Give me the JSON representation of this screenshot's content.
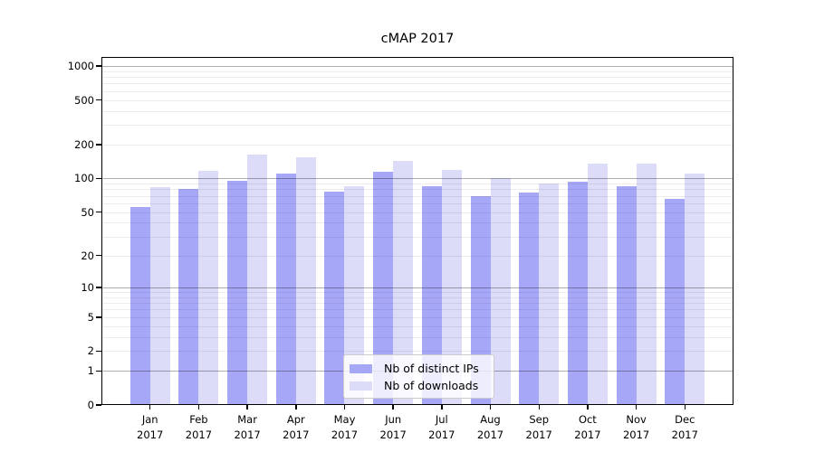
{
  "title": "cMAP 2017",
  "chart_data": {
    "type": "bar",
    "title": "cMAP 2017",
    "categories": [
      "Jan",
      "Feb",
      "Mar",
      "Apr",
      "May",
      "Jun",
      "Jul",
      "Aug",
      "Sep",
      "Oct",
      "Nov",
      "Dec"
    ],
    "category_year": "2017",
    "series": [
      {
        "name": "Nb of distinct IPs",
        "color": "#a7a7f7",
        "values": [
          55,
          80,
          95,
          110,
          77,
          115,
          85,
          69,
          75,
          93,
          85,
          66
        ]
      },
      {
        "name": "Nb of downloads",
        "color": "#dcdcf8",
        "values": [
          83,
          116,
          163,
          155,
          85,
          143,
          119,
          100,
          90,
          135,
          135,
          110
        ]
      }
    ],
    "y_scale": "log10(1+v)",
    "y_ticks_labeled": [
      0,
      1,
      2,
      5,
      10,
      20,
      50,
      100,
      200,
      500,
      1000
    ],
    "y_gridlines_major": [
      1,
      10,
      100,
      1000
    ],
    "y_gridlines_minor": [
      2,
      3,
      4,
      5,
      6,
      7,
      8,
      9,
      20,
      30,
      40,
      50,
      60,
      70,
      80,
      90,
      200,
      300,
      400,
      500,
      600,
      700,
      800,
      900
    ],
    "ylim": [
      0,
      1200
    ],
    "grid": true,
    "legend_position": "lower-center"
  }
}
